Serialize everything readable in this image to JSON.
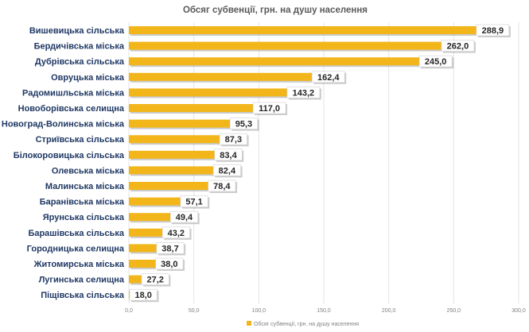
{
  "chart_data": {
    "type": "bar",
    "orientation": "horizontal",
    "title": "Обсяг субвенції, грн. на душу населення",
    "categories": [
      "Вишевицька сільська",
      "Бердичівська міська",
      "Дубрівська сільська",
      "Овруцька міська",
      "Радомишльська міська",
      "Новоборівська селищна",
      "Новоград-Волинська міська",
      "Стриївська сільська",
      "Білокоровицька сільська",
      "Олевська міська",
      "Малинська міська",
      "Баранівська міська",
      "Ярунська сільська",
      "Барашівська сільська",
      "Городницька селищна",
      "Житомирська міська",
      "Лугинська селищна",
      "Піщівська сільська"
    ],
    "series": [
      {
        "name": "Обсяг субвенції, грн. на душу населення",
        "values": [
          288.9,
          262.0,
          245.0,
          162.4,
          143.2,
          117.0,
          95.3,
          87.3,
          83.4,
          82.4,
          78.4,
          57.1,
          49.4,
          43.2,
          38.7,
          38.0,
          27.2,
          18.0
        ],
        "labels": [
          "288,9",
          "262,0",
          "245,0",
          "162,4",
          "143,2",
          "117,0",
          "95,3",
          "87,3",
          "83,4",
          "82,4",
          "78,4",
          "57,1",
          "49,4",
          "43,2",
          "38,7",
          "38,0",
          "27,2",
          "18,0"
        ]
      }
    ],
    "xlim": [
      0,
      300
    ],
    "xticks": [
      0,
      50,
      100,
      150,
      200,
      250,
      300
    ],
    "xtick_labels": [
      "0,0",
      "50,0",
      "100,0",
      "150,0",
      "200,0",
      "250,0",
      "300,0"
    ],
    "grid": true,
    "legend": "bottom",
    "colors": {
      "bar": "#F2B61A",
      "bar_shadow": "#8a8a8a",
      "category_text": "#1F3864",
      "grid": "#e3e3e3"
    }
  }
}
